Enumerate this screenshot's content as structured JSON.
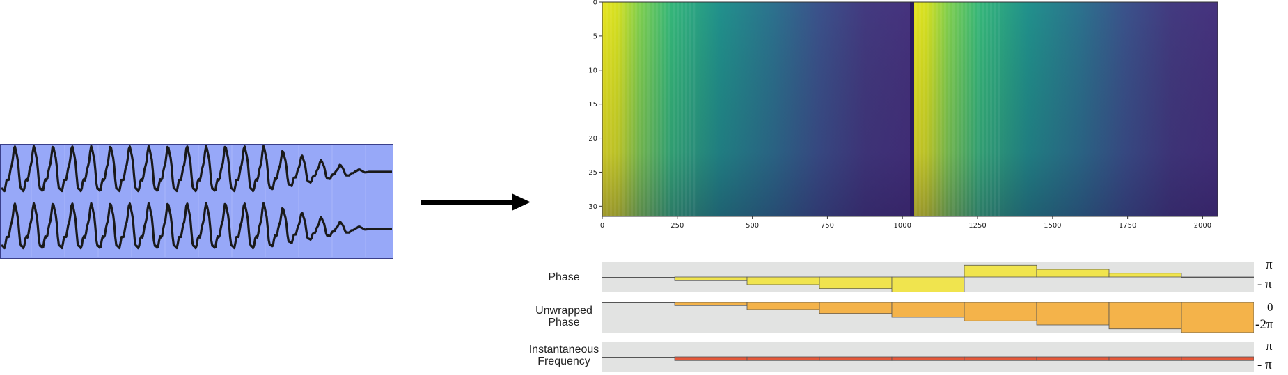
{
  "diagram": {
    "waveform": {
      "bg": "#97a8f8",
      "line": "#1a1a1a"
    },
    "spectrogram": {
      "x_ticks": [
        "0",
        "250",
        "500",
        "750",
        "1000",
        "1250",
        "1500",
        "1750",
        "2000"
      ],
      "x_tick_values": [
        0,
        250,
        500,
        750,
        1000,
        1250,
        1500,
        1750,
        2000
      ],
      "y_ticks": [
        "0",
        "5",
        "10",
        "15",
        "20",
        "25",
        "30"
      ],
      "y_tick_values": [
        0,
        5,
        10,
        15,
        20,
        25,
        30
      ],
      "x_range": [
        0,
        2050
      ],
      "y_range": [
        0,
        31.5
      ],
      "colormap": "viridis"
    },
    "rows": [
      {
        "id": "phase",
        "label": [
          "Phase"
        ],
        "scale_top": "π",
        "scale_bottom": "- π",
        "color": "#f0e44e",
        "values": [
          0,
          -0.12,
          -0.25,
          -0.38,
          -0.5,
          0.38,
          0.25,
          0.12,
          0
        ]
      },
      {
        "id": "unwrapped",
        "label": [
          "Unwrapped",
          "Phase"
        ],
        "scale_top": "0",
        "scale_bottom": "-2π",
        "color": "#f4b34a",
        "values": [
          0,
          -0.12,
          -0.25,
          -0.38,
          -0.5,
          -0.62,
          -0.75,
          -0.88,
          -1
        ]
      },
      {
        "id": "instfreq",
        "label": [
          "Instantaneous",
          "Frequency"
        ],
        "scale_top": "π",
        "scale_bottom": "- π",
        "color": "#e5583a",
        "values": [
          0,
          -0.12,
          -0.12,
          -0.12,
          -0.12,
          -0.12,
          -0.12,
          -0.12,
          -0.12
        ]
      }
    ]
  }
}
